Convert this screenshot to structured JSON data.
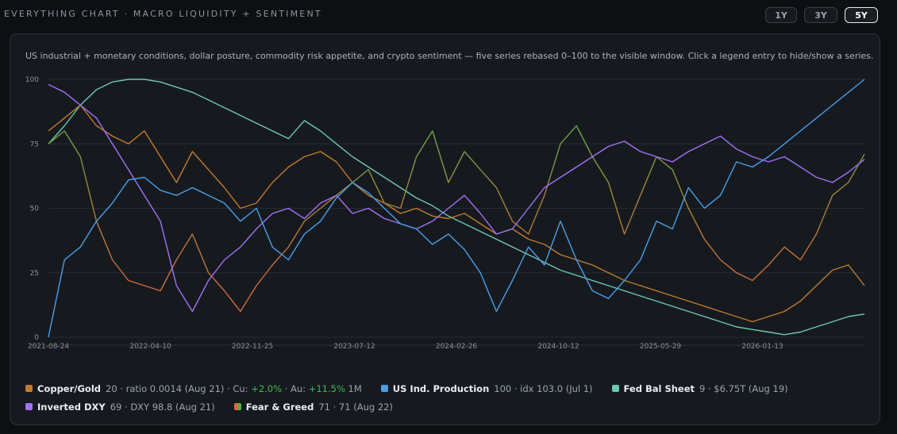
{
  "header": {
    "title": "EVERYTHING CHART · MACRO LIQUIDITY + SENTIMENT",
    "ranges": [
      "1Y",
      "3Y",
      "5Y"
    ],
    "active_range": "5Y"
  },
  "description": "US industrial + monetary conditions, dollar posture, commodity risk appetite, and crypto sentiment — five series rebased 0–100 to the visible window. Click a legend entry to hide/show a series.",
  "legend": [
    {
      "name": "Copper/Gold",
      "color": "#c57a2e",
      "d1": "20 · ratio 0.0014 (Aug 21) · Cu: ",
      "cu": "+2.0%",
      "d2": " · Au: ",
      "au": "+11.5%",
      "d3": " 1M"
    },
    {
      "name": "US Ind. Production",
      "color": "#4a9eea",
      "detail": "100 · idx 103.0 (Jul 1)"
    },
    {
      "name": "Fed Bal Sheet",
      "color": "#6fc7b3",
      "detail": "9 · $6.75T (Aug 19)"
    },
    {
      "name": "Inverted DXY",
      "color": "#a371f7",
      "detail": "69 · DXY 98.8 (Aug 21)"
    },
    {
      "name": "Fear & Greed",
      "color": "#e8613a",
      "color2": "#3fb950",
      "detail": "71 · 71 (Aug 22)"
    }
  ],
  "chart_data": {
    "type": "line",
    "y_ticks": [
      "0",
      "25",
      "50",
      "75",
      "100"
    ],
    "ylim": [
      0,
      100
    ],
    "x_ticks": [
      "2021-08-24",
      "2022-04-10",
      "2022-11-25",
      "2023-07-12",
      "2024-02-26",
      "2024-10-12",
      "2025-05-29",
      "2026-01-13"
    ],
    "grid": true,
    "series": [
      {
        "name": "Fed Bal Sheet",
        "color": "#6fc7b3",
        "values": [
          75,
          82,
          90,
          96,
          99,
          100,
          100,
          99,
          97,
          95,
          92,
          89,
          86,
          83,
          80,
          77,
          84,
          80,
          75,
          70,
          66,
          62,
          58,
          54,
          51,
          47,
          44,
          41,
          38,
          35,
          32,
          29,
          26,
          24,
          22,
          20,
          18,
          16,
          14,
          12,
          10,
          8,
          6,
          4,
          3,
          2,
          1,
          2,
          4,
          6,
          8,
          9
        ]
      },
      {
        "name": "Copper/Gold",
        "color": "#c57a2e",
        "values": [
          80,
          85,
          90,
          82,
          78,
          75,
          80,
          70,
          60,
          72,
          65,
          58,
          50,
          52,
          60,
          66,
          70,
          72,
          68,
          60,
          55,
          52,
          48,
          50,
          47,
          46,
          48,
          44,
          40,
          42,
          38,
          36,
          32,
          30,
          28,
          25,
          22,
          20,
          18,
          16,
          14,
          12,
          10,
          8,
          6,
          8,
          10,
          14,
          20,
          26,
          28,
          20
        ]
      },
      {
        "name": "Fear & Greed",
        "color": "#e8613a",
        "color2": "#3fb950",
        "values": [
          75,
          80,
          70,
          45,
          30,
          22,
          20,
          18,
          30,
          40,
          25,
          18,
          10,
          20,
          28,
          35,
          45,
          50,
          55,
          60,
          65,
          52,
          50,
          70,
          80,
          60,
          72,
          65,
          58,
          45,
          40,
          55,
          75,
          82,
          70,
          60,
          40,
          55,
          70,
          65,
          50,
          38,
          30,
          25,
          22,
          28,
          35,
          30,
          40,
          55,
          60,
          71
        ]
      },
      {
        "name": "Inverted DXY",
        "color": "#a371f7",
        "values": [
          98,
          95,
          90,
          85,
          75,
          65,
          55,
          45,
          20,
          10,
          22,
          30,
          35,
          42,
          48,
          50,
          46,
          52,
          55,
          48,
          50,
          46,
          44,
          42,
          45,
          50,
          55,
          48,
          40,
          42,
          50,
          58,
          62,
          66,
          70,
          74,
          76,
          72,
          70,
          68,
          72,
          75,
          78,
          73,
          70,
          68,
          70,
          66,
          62,
          60,
          64,
          69
        ]
      },
      {
        "name": "US Ind. Production",
        "color": "#4a9eea",
        "values": [
          0,
          30,
          35,
          45,
          52,
          61,
          62,
          57,
          55,
          58,
          55,
          52,
          45,
          50,
          35,
          30,
          40,
          45,
          54,
          60,
          56,
          50,
          44,
          42,
          36,
          40,
          34,
          25,
          10,
          22,
          35,
          28,
          45,
          30,
          18,
          15,
          22,
          30,
          45,
          42,
          58,
          50,
          55,
          68,
          66,
          70,
          75,
          80,
          85,
          90,
          95,
          100
        ]
      }
    ]
  }
}
